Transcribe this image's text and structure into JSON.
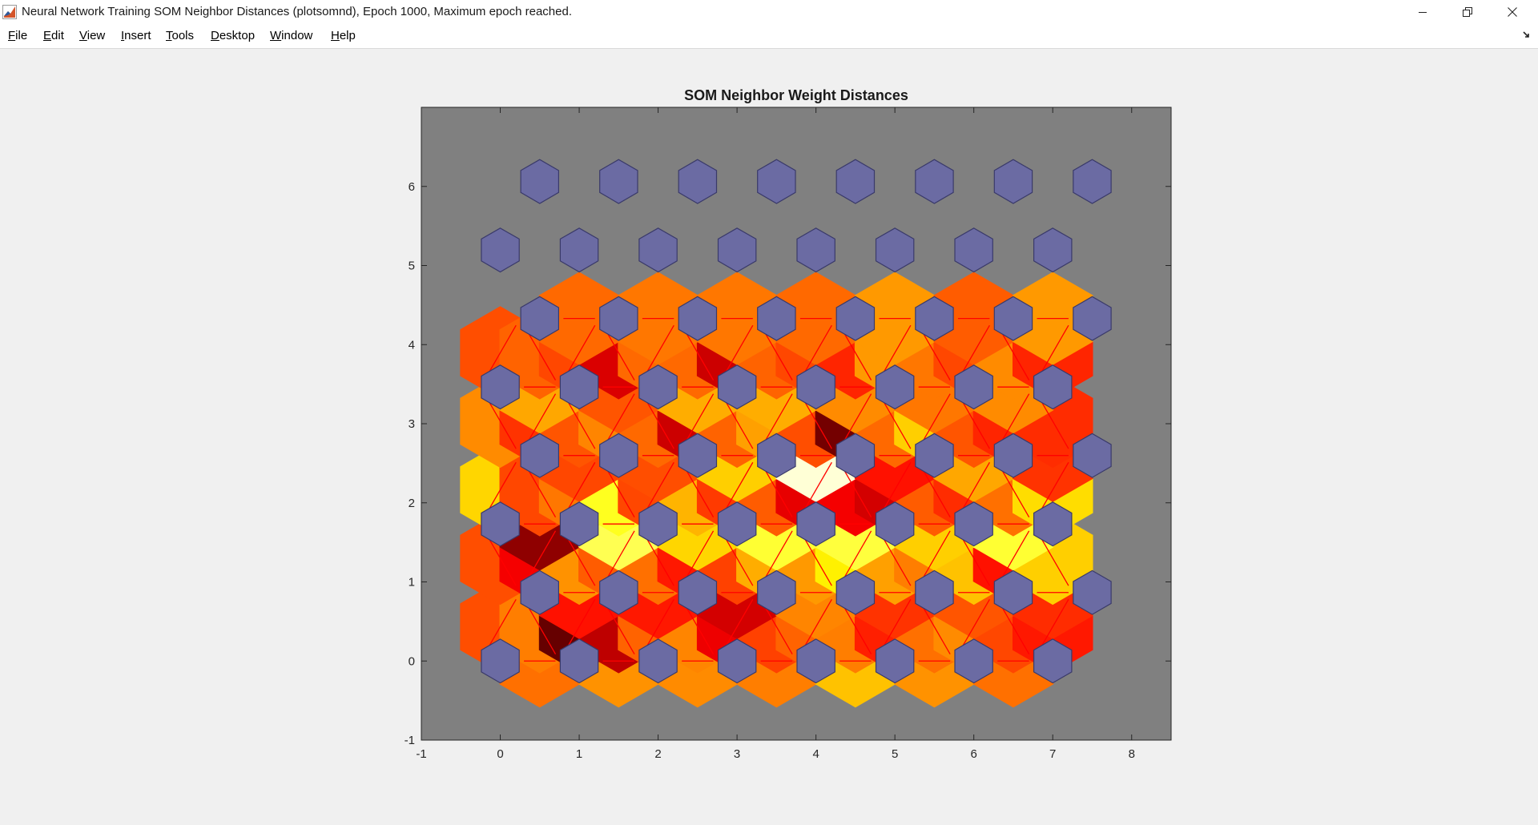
{
  "window": {
    "title": "Neural Network Training SOM Neighbor Distances (plotsomnd), Epoch 1000, Maximum epoch reached.",
    "controls": {
      "minimize_icon": "minimize-icon",
      "restore_icon": "restore-icon",
      "close_icon": "close-icon"
    }
  },
  "menu": [
    {
      "key": "F",
      "rest": "ile"
    },
    {
      "key": "E",
      "rest": "dit"
    },
    {
      "key": "V",
      "rest": "iew"
    },
    {
      "key": "I",
      "rest": "nsert"
    },
    {
      "key": "T",
      "rest": "ools"
    },
    {
      "key": "D",
      "rest": "esktop"
    },
    {
      "key": "W",
      "rest": "indow"
    },
    {
      "key": "H",
      "rest": "elp"
    }
  ],
  "chart_data": {
    "type": "heatmap",
    "title": "SOM Neighbor Weight Distances",
    "xlim": [
      -1,
      8.5
    ],
    "ylim": [
      -1,
      7
    ],
    "x_ticks": [
      "-1",
      "0",
      "1",
      "2",
      "3",
      "4",
      "5",
      "6",
      "7",
      "8"
    ],
    "y_ticks": [
      "-1",
      "0",
      "1",
      "2",
      "3",
      "4",
      "5",
      "6"
    ],
    "grid": false,
    "topology": "hexagonal",
    "grid_size": [
      8,
      8
    ],
    "background_color": "#808080",
    "neuron_color": "#6b6ba3",
    "colormap": "hot",
    "distance_levels": [
      [
        0.62,
        0.54,
        0.65,
        0.59,
        0.6,
        0.58,
        0.68,
        0.56,
        0.64,
        0.66,
        0.53,
        0.59,
        0.6,
        0.54,
        0.63
      ],
      [
        0.49,
        0.56,
        0.15,
        0.28,
        0.52,
        0.57,
        0.35,
        0.47,
        0.52,
        0.56,
        0.42,
        0.54,
        0.58,
        0.48,
        0.41
      ],
      [
        0.58,
        0.4,
        0.63,
        0.41,
        0.56,
        0.31,
        0.63,
        0.57,
        0.52,
        0.45,
        0.55,
        0.5,
        0.6,
        0.44,
        0.61
      ],
      [
        0.49,
        0.36,
        0.59,
        0.51,
        0.54,
        0.41,
        0.47,
        0.63,
        0.6,
        0.73,
        0.61,
        0.56,
        0.66,
        0.4,
        0.68
      ],
      [
        0.62,
        0.21,
        0.57,
        0.83,
        0.58,
        0.69,
        0.58,
        0.8,
        0.74,
        0.81,
        0.6,
        0.68,
        0.59,
        0.8,
        0.65
      ],
      [
        0.69,
        0.48,
        0.55,
        0.78,
        0.48,
        0.64,
        0.46,
        0.51,
        0.34,
        0.36,
        0.31,
        0.51,
        0.44,
        0.54,
        0.7
      ],
      [
        0.34,
        0.48,
        0.63,
        0.49,
        0.54,
        0.68,
        0.53,
        0.96,
        0.46,
        0.4,
        0.5,
        0.62,
        0.38,
        0.45,
        0.52
      ],
      [
        0.58,
        0.45,
        0.5,
        0.57,
        0.53,
        0.3,
        0.52,
        0.61,
        0.49,
        0.17,
        0.53,
        0.68,
        0.5,
        0.43,
        0.44
      ],
      [
        0.63,
        0.62,
        0.6,
        0.5,
        0.52,
        0.63,
        0.6,
        0.63,
        0.59,
        0.58,
        0.57,
        0.55,
        0.01,
        0.58,
        0.65
      ],
      [
        0.49,
        0.52,
        0.48,
        0.32,
        0.53,
        0.53,
        0.3,
        0.52,
        0.48,
        0.43,
        0.6,
        0.55,
        0.48,
        0.58,
        0.43
      ],
      [
        0.6,
        0.53,
        0.84,
        0.55,
        0.51,
        0.55,
        0.6,
        0.53,
        0.62,
        0.6,
        0.47,
        0.51,
        0.58,
        0.6,
        0.66
      ]
    ]
  }
}
